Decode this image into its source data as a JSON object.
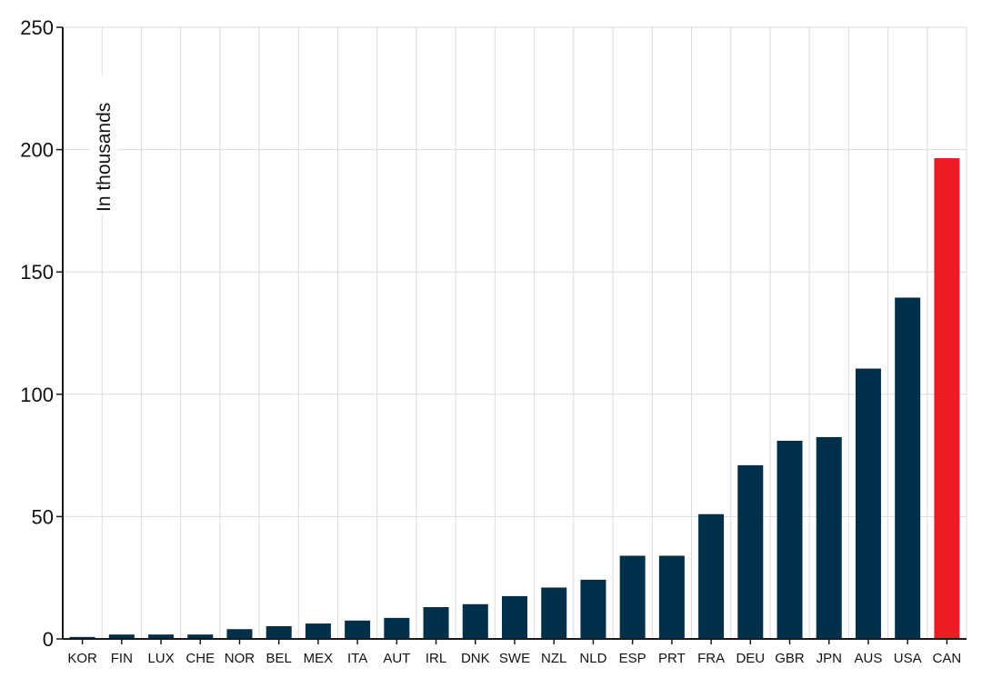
{
  "chart_data": {
    "type": "bar",
    "title": "",
    "xlabel": "",
    "ylabel": "In thousands",
    "ylim": [
      0,
      250
    ],
    "yticks": [
      0,
      50,
      100,
      150,
      200,
      250
    ],
    "grid": true,
    "categories": [
      "KOR",
      "FIN",
      "LUX",
      "CHE",
      "NOR",
      "BEL",
      "MEX",
      "ITA",
      "AUT",
      "IRL",
      "DNK",
      "SWE",
      "NZL",
      "NLD",
      "ESP",
      "PRT",
      "FRA",
      "DEU",
      "GBR",
      "JPN",
      "AUS",
      "USA",
      "CAN"
    ],
    "values": [
      0.8,
      1.8,
      1.8,
      1.8,
      4,
      5.2,
      6.3,
      7.5,
      8.6,
      13,
      14.2,
      17.5,
      21,
      24.2,
      34,
      34,
      51,
      71,
      81,
      82.5,
      110.5,
      139.5,
      196.5
    ],
    "colors": {
      "default": "#02304a",
      "highlight": "#ed1c24"
    },
    "highlight_category": "CAN"
  }
}
